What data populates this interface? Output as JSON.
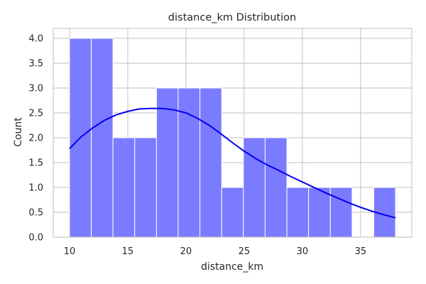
{
  "chart_data": {
    "type": "bar",
    "title": "distance_km Distribution",
    "xlabel": "distance_km",
    "ylabel": "Count",
    "xlim": [
      8.6,
      39.4
    ],
    "ylim": [
      0,
      4.2
    ],
    "x_ticks": [
      10,
      15,
      20,
      25,
      30,
      35
    ],
    "y_ticks": [
      0.0,
      0.5,
      1.0,
      1.5,
      2.0,
      2.5,
      3.0,
      3.5,
      4.0
    ],
    "x_tick_labels": [
      "10",
      "15",
      "20",
      "25",
      "30",
      "35"
    ],
    "y_tick_labels": [
      "0.0",
      "0.5",
      "1.0",
      "1.5",
      "2.0",
      "2.5",
      "3.0",
      "3.5",
      "4.0"
    ],
    "bins": [
      {
        "x0": 10.0,
        "x1": 11.87,
        "count": 4
      },
      {
        "x0": 11.87,
        "x1": 13.73,
        "count": 4
      },
      {
        "x0": 13.73,
        "x1": 15.6,
        "count": 2
      },
      {
        "x0": 15.6,
        "x1": 17.47,
        "count": 2
      },
      {
        "x0": 17.47,
        "x1": 19.33,
        "count": 3
      },
      {
        "x0": 19.33,
        "x1": 21.2,
        "count": 3
      },
      {
        "x0": 21.2,
        "x1": 23.07,
        "count": 3
      },
      {
        "x0": 23.07,
        "x1": 24.93,
        "count": 1
      },
      {
        "x0": 24.93,
        "x1": 26.8,
        "count": 2
      },
      {
        "x0": 26.8,
        "x1": 28.67,
        "count": 2
      },
      {
        "x0": 28.67,
        "x1": 30.53,
        "count": 1
      },
      {
        "x0": 30.53,
        "x1": 32.4,
        "count": 1
      },
      {
        "x0": 32.4,
        "x1": 34.27,
        "count": 1
      },
      {
        "x0": 34.27,
        "x1": 36.13,
        "count": 0
      },
      {
        "x0": 36.13,
        "x1": 38.0,
        "count": 1
      }
    ],
    "kde": {
      "x": [
        10,
        11,
        12,
        13,
        14,
        15,
        16,
        17,
        18,
        19,
        20,
        21,
        22,
        23,
        24,
        25,
        26,
        27,
        28,
        29,
        30,
        31,
        32,
        33,
        34,
        35,
        36,
        37,
        38
      ],
      "y": [
        1.78,
        2.02,
        2.2,
        2.35,
        2.46,
        2.53,
        2.58,
        2.59,
        2.59,
        2.56,
        2.5,
        2.39,
        2.25,
        2.08,
        1.9,
        1.73,
        1.58,
        1.45,
        1.34,
        1.22,
        1.11,
        1.0,
        0.89,
        0.79,
        0.69,
        0.6,
        0.52,
        0.45,
        0.39
      ]
    },
    "grid": true,
    "colors": {
      "bar_fill": "#7b7bff",
      "bar_edge": "#ffffff",
      "kde_line": "#0000ee",
      "grid": "#cccccc"
    }
  }
}
